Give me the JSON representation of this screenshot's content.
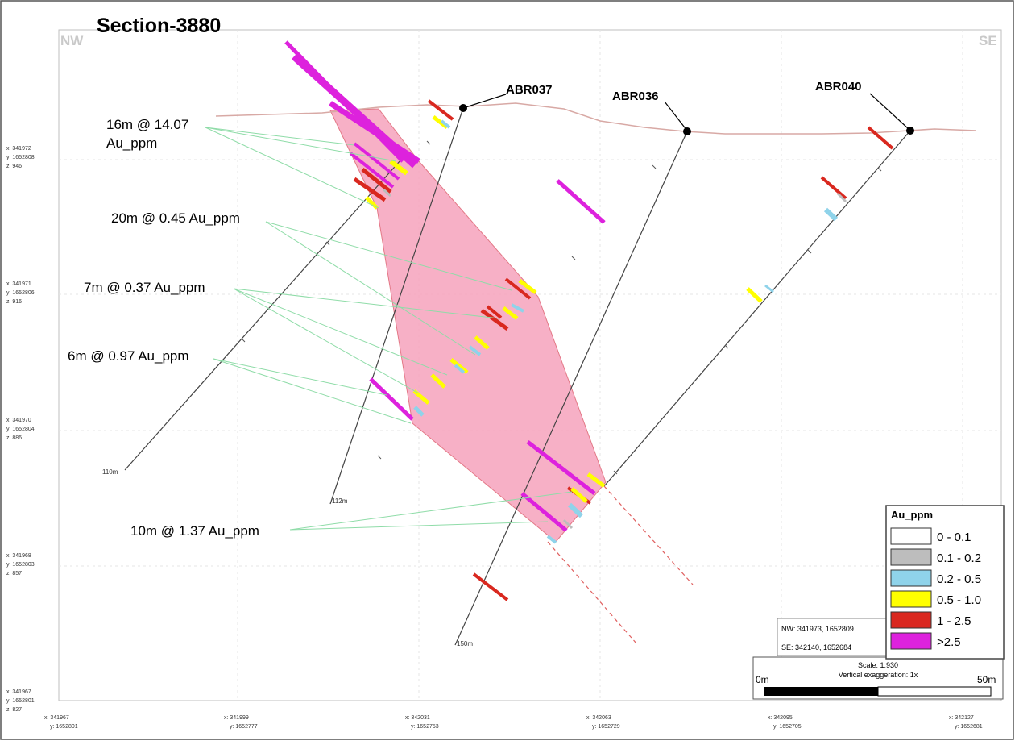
{
  "title": "Section-3880",
  "orientation": {
    "left": "NW",
    "right": "SE"
  },
  "drillholes": [
    {
      "id": "ABR037",
      "end_depth_label": "112m"
    },
    {
      "id": "ABR036",
      "end_depth_label": "150m"
    },
    {
      "id": "ABR040"
    }
  ],
  "extra_hole_end_label": "110m",
  "intervals": [
    {
      "line1": "16m @ 14.07",
      "line2": "Au_ppm"
    },
    {
      "line1": "20m @ 0.45 Au_ppm"
    },
    {
      "line1": "7m @ 0.37 Au_ppm"
    },
    {
      "line1": "6m @ 0.97 Au_ppm"
    },
    {
      "line1": "10m @ 1.37 Au_ppm"
    }
  ],
  "left_axis": [
    {
      "x": "x: 341972",
      "y": "y: 1652808",
      "z": "z: 946"
    },
    {
      "x": "x: 341971",
      "y": "y: 1652806",
      "z": "z: 916"
    },
    {
      "x": "x: 341970",
      "y": "y: 1652804",
      "z": "z: 886"
    },
    {
      "x": "x: 341968",
      "y": "y: 1652803",
      "z": "z: 857"
    },
    {
      "x": "x: 341967",
      "y": "y: 1652801",
      "z": "z: 827"
    }
  ],
  "bottom_axis": [
    {
      "x": "x: 341967",
      "y": "y: 1652801"
    },
    {
      "x": "x: 341999",
      "y": "y: 1652777"
    },
    {
      "x": "x: 342031",
      "y": "y: 1652753"
    },
    {
      "x": "x: 342063",
      "y": "y: 1652729"
    },
    {
      "x": "x: 342095",
      "y": "y: 1652705"
    },
    {
      "x": "x: 342127",
      "y": "y: 1652681"
    }
  ],
  "legend": {
    "title": "Au_ppm",
    "items": [
      {
        "label": "0 - 0.1",
        "color": "#ffffff"
      },
      {
        "label": "0.1 - 0.2",
        "color": "#bdbdbd"
      },
      {
        "label": "0.2 - 0.5",
        "color": "#8fd3ea"
      },
      {
        "label": "0.5 - 1.0",
        "color": "#ffff00"
      },
      {
        "label": "1 - 2.5",
        "color": "#d9281f"
      },
      {
        "label": ">2.5",
        "color": "#dd22dd"
      }
    ]
  },
  "section_ends": {
    "nw": "NW:  341973, 1652809",
    "se": "SE:  342140, 1652684"
  },
  "scale": {
    "text": "Scale: 1:930",
    "exaggeration": "Vertical exaggeration: 1x",
    "start": "0m",
    "end": "50m"
  },
  "colors": {
    "ore_body": "#f7a8c0",
    "ore_body_edge": "#e06a7a",
    "connector": "#8fdca8"
  }
}
